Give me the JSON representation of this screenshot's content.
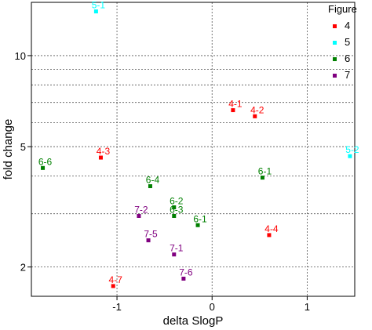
{
  "chart_data": {
    "type": "scatter",
    "xlabel": "delta SlogP",
    "ylabel": "fold change",
    "xlim": [
      -1.9,
      1.5
    ],
    "ylim": [
      1.6,
      15.0
    ],
    "y_scale": "log",
    "x_ticks": [
      -1,
      0,
      1
    ],
    "x_tick_labels": [
      "-1",
      "0",
      "1"
    ],
    "y_ticks": [
      2,
      5,
      10
    ],
    "y_tick_labels": [
      "2",
      "5",
      "10"
    ],
    "y_grid_lines": [
      2,
      3,
      4,
      5,
      6,
      7,
      8,
      9,
      10
    ],
    "x_grid_lines": [
      -1,
      0,
      1
    ],
    "grid": true,
    "legend": {
      "title": "Figure",
      "placement": "right",
      "entries": [
        {
          "label": "4",
          "color": "#ff0000"
        },
        {
          "label": "5",
          "color": "#00ffff"
        },
        {
          "label": "6",
          "color": "#008000"
        },
        {
          "label": "7",
          "color": "#800080"
        }
      ]
    },
    "series": [
      {
        "name": "4",
        "color": "#ff0000",
        "points": [
          {
            "label": "4-1",
            "x": 0.22,
            "y": 6.6
          },
          {
            "label": "4-2",
            "x": 0.45,
            "y": 6.3
          },
          {
            "label": "4-3",
            "x": -1.17,
            "y": 4.6
          },
          {
            "label": "4-4",
            "x": 0.6,
            "y": 2.55
          },
          {
            "label": "4-7",
            "x": -1.04,
            "y": 1.73
          }
        ]
      },
      {
        "name": "5",
        "color": "#00ffff",
        "points": [
          {
            "label": "5-1",
            "x": -1.22,
            "y": 14.0
          },
          {
            "label": "5-2",
            "x": 1.45,
            "y": 4.65
          }
        ]
      },
      {
        "name": "6",
        "color": "#008000",
        "points": [
          {
            "label": "6-6",
            "x": -1.78,
            "y": 4.25
          },
          {
            "label": "6-4",
            "x": -0.65,
            "y": 3.7
          },
          {
            "label": "6-1",
            "x": 0.53,
            "y": 3.95
          },
          {
            "label": "6-2",
            "x": -0.4,
            "y": 3.15
          },
          {
            "label": "6-3",
            "x": -0.4,
            "y": 2.95
          },
          {
            "label": "6-1",
            "x": -0.15,
            "y": 2.75
          }
        ]
      },
      {
        "name": "7",
        "color": "#800080",
        "points": [
          {
            "label": "7-2",
            "x": -0.77,
            "y": 2.95
          },
          {
            "label": "7-5",
            "x": -0.67,
            "y": 2.45
          },
          {
            "label": "7-1",
            "x": -0.4,
            "y": 2.2
          },
          {
            "label": "7-6",
            "x": -0.3,
            "y": 1.83
          }
        ]
      }
    ]
  }
}
